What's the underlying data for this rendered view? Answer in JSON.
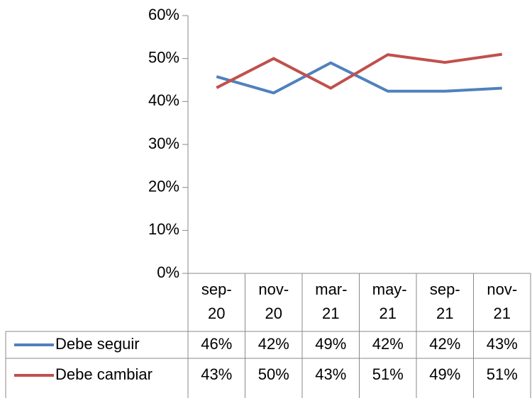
{
  "chart_data": {
    "type": "line",
    "categories": [
      "sep-20",
      "nov-20",
      "mar-21",
      "may-21",
      "sep-21",
      "nov-21"
    ],
    "series": [
      {
        "name": "Debe seguir",
        "color": "#4f81bd",
        "values": [
          45.8,
          42,
          49,
          42.4,
          42.4,
          43.1
        ],
        "value_labels": [
          "46%",
          "42%",
          "49%",
          "42%",
          "42%",
          "43%"
        ]
      },
      {
        "name": "Debe cambiar",
        "color": "#c0504d",
        "values": [
          43.2,
          50,
          43.1,
          50.9,
          49.1,
          51
        ],
        "value_labels": [
          "43%",
          "50%",
          "43%",
          "51%",
          "49%",
          "51%"
        ]
      }
    ],
    "ylim": [
      0,
      60
    ],
    "yticks": [
      {
        "value": 0,
        "label": "0%"
      },
      {
        "value": 10,
        "label": "10%"
      },
      {
        "value": 20,
        "label": "20%"
      },
      {
        "value": 30,
        "label": "30%"
      },
      {
        "value": 40,
        "label": "40%"
      },
      {
        "value": 50,
        "label": "50%"
      },
      {
        "value": 60,
        "label": "60%"
      }
    ]
  }
}
